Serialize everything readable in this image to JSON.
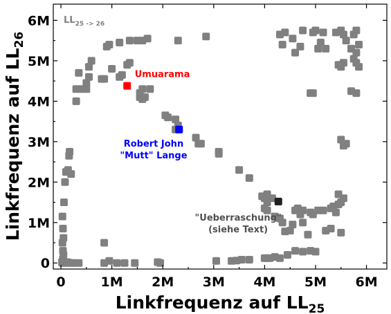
{
  "chart_data": {
    "type": "scatter",
    "xlabel": "Linkfrequenz auf LL",
    "xlabel_sub": "25",
    "ylabel": "Linkfrequenz auf LL",
    "ylabel_sub": "26",
    "corner_label": "LL",
    "corner_label_sub": "25 -> 26",
    "xlim": [
      -0.15,
      6.4
    ],
    "ylim": [
      -0.15,
      6.4
    ],
    "x_ticks": [
      0,
      1,
      2,
      3,
      4,
      5,
      6
    ],
    "x_tick_labels": [
      "0",
      "1M",
      "2M",
      "3M",
      "4M",
      "5M",
      "6M"
    ],
    "y_ticks": [
      0,
      1,
      2,
      3,
      4,
      5,
      6
    ],
    "y_tick_labels": [
      "0",
      "1M",
      "2M",
      "3M",
      "4M",
      "5M",
      "6M"
    ],
    "colors": {
      "default": "#808080",
      "Umuarama": "#ff0000",
      "Robert John Mutt Lange": "#0000ff",
      "Ueberraschung": "#202020"
    },
    "series": [
      {
        "color": "#808080",
        "points": [
          [
            0.02,
            0.02
          ],
          [
            0.03,
            0.0
          ],
          [
            0.05,
            0.03
          ],
          [
            0.1,
            0.0
          ],
          [
            0.12,
            0.02
          ],
          [
            0.15,
            0.01
          ],
          [
            0.2,
            0.0
          ],
          [
            0.25,
            0.0
          ],
          [
            0.35,
            0.0
          ],
          [
            0.04,
            0.1
          ],
          [
            0.05,
            0.2
          ],
          [
            0.04,
            0.3
          ],
          [
            0.03,
            0.5
          ],
          [
            0.05,
            0.62
          ],
          [
            0.04,
            0.85
          ],
          [
            0.03,
            1.15
          ],
          [
            0.06,
            1.5
          ],
          [
            0.08,
            2.0
          ],
          [
            0.1,
            2.25
          ],
          [
            0.14,
            2.3
          ],
          [
            0.2,
            2.2
          ],
          [
            0.16,
            2.65
          ],
          [
            0.17,
            2.75
          ],
          [
            0.85,
            0.0
          ],
          [
            0.95,
            0.05
          ],
          [
            1.1,
            0.0
          ],
          [
            1.25,
            0.0
          ],
          [
            1.45,
            0.0
          ],
          [
            1.9,
            0.02
          ],
          [
            1.95,
            0.0
          ],
          [
            0.85,
            0.5
          ],
          [
            0.3,
            4.0
          ],
          [
            0.3,
            4.3
          ],
          [
            0.4,
            4.3
          ],
          [
            0.5,
            4.3
          ],
          [
            0.5,
            4.45
          ],
          [
            0.55,
            4.6
          ],
          [
            0.55,
            4.85
          ],
          [
            0.6,
            5.0
          ],
          [
            0.35,
            4.7
          ],
          [
            0.8,
            4.55
          ],
          [
            0.85,
            4.55
          ],
          [
            0.9,
            5.35
          ],
          [
            0.95,
            5.4
          ],
          [
            1.0,
            4.8
          ],
          [
            1.15,
            4.6
          ],
          [
            1.2,
            4.65
          ],
          [
            1.15,
            5.45
          ],
          [
            1.35,
            5.5
          ],
          [
            1.3,
            4.9
          ],
          [
            1.35,
            4.95
          ],
          [
            1.5,
            5.5
          ],
          [
            1.6,
            5.5
          ],
          [
            1.7,
            5.55
          ],
          [
            1.55,
            4.2
          ],
          [
            1.6,
            4.3
          ],
          [
            1.55,
            4.1
          ],
          [
            1.6,
            4.05
          ],
          [
            1.65,
            4.1
          ],
          [
            1.75,
            4.3
          ],
          [
            2.3,
            5.5
          ],
          [
            2.85,
            5.6
          ],
          [
            2.05,
            3.65
          ],
          [
            2.1,
            3.6
          ],
          [
            2.25,
            3.55
          ],
          [
            2.25,
            3.3
          ],
          [
            2.3,
            3.4
          ],
          [
            2.65,
            3.1
          ],
          [
            2.7,
            2.95
          ],
          [
            2.75,
            2.95
          ],
          [
            3.1,
            2.75
          ],
          [
            3.1,
            2.7
          ],
          [
            3.5,
            2.3
          ],
          [
            3.7,
            2.1
          ],
          [
            3.05,
            0.05
          ],
          [
            3.35,
            0.05
          ],
          [
            3.45,
            0.06
          ],
          [
            3.55,
            0.08
          ],
          [
            3.7,
            0.08
          ],
          [
            4.0,
            0.12
          ],
          [
            4.05,
            0.12
          ],
          [
            4.1,
            0.12
          ],
          [
            4.2,
            0.15
          ],
          [
            4.3,
            0.12
          ],
          [
            4.45,
            0.2
          ],
          [
            4.6,
            0.3
          ],
          [
            4.75,
            0.28
          ],
          [
            4.9,
            0.3
          ],
          [
            5.0,
            0.28
          ],
          [
            3.95,
            1.65
          ],
          [
            4.05,
            1.7
          ],
          [
            4.0,
            1.6
          ],
          [
            4.05,
            1.5
          ],
          [
            4.15,
            1.6
          ],
          [
            4.05,
            1.3
          ],
          [
            4.0,
            1.35
          ],
          [
            4.2,
            1.15
          ],
          [
            4.3,
            1.1
          ],
          [
            4.35,
            1.0
          ],
          [
            4.4,
            0.78
          ],
          [
            4.5,
            0.8
          ],
          [
            4.6,
            1.3
          ],
          [
            4.65,
            1.35
          ],
          [
            4.75,
            1.3
          ],
          [
            4.7,
            1.2
          ],
          [
            4.75,
            1.0
          ],
          [
            4.95,
            1.2
          ],
          [
            4.9,
            1.25
          ],
          [
            5.05,
            1.3
          ],
          [
            4.85,
            0.7
          ],
          [
            5.15,
            1.3
          ],
          [
            5.3,
            1.35
          ],
          [
            5.35,
            1.4
          ],
          [
            5.45,
            1.7
          ],
          [
            5.5,
            1.5
          ],
          [
            5.45,
            1.45
          ],
          [
            5.55,
            1.6
          ],
          [
            5.4,
            1.25
          ],
          [
            5.2,
            0.8
          ],
          [
            5.3,
            0.85
          ],
          [
            5.5,
            0.75
          ],
          [
            4.55,
            0.95
          ],
          [
            4.3,
            5.65
          ],
          [
            4.35,
            5.4
          ],
          [
            4.4,
            5.7
          ],
          [
            4.6,
            5.2
          ],
          [
            4.7,
            5.35
          ],
          [
            4.55,
            5.55
          ],
          [
            4.75,
            5.75
          ],
          [
            4.95,
            5.7
          ],
          [
            5.0,
            5.75
          ],
          [
            5.05,
            5.3
          ],
          [
            5.1,
            5.45
          ],
          [
            5.2,
            5.3
          ],
          [
            5.15,
            5.7
          ],
          [
            4.9,
            4.2
          ],
          [
            4.95,
            4.2
          ],
          [
            5.4,
            5.7
          ],
          [
            5.5,
            5.75
          ],
          [
            5.55,
            5.65
          ],
          [
            5.6,
            5.5
          ],
          [
            5.7,
            5.3
          ],
          [
            5.75,
            5.65
          ],
          [
            5.8,
            5.75
          ],
          [
            5.85,
            5.4
          ],
          [
            5.75,
            5.05
          ],
          [
            5.7,
            5.3
          ],
          [
            5.8,
            5.2
          ],
          [
            5.45,
            4.9
          ],
          [
            5.5,
            4.85
          ],
          [
            5.55,
            4.95
          ],
          [
            5.8,
            4.95
          ],
          [
            5.85,
            4.85
          ],
          [
            5.7,
            4.25
          ],
          [
            5.8,
            4.2
          ],
          [
            5.5,
            3.05
          ],
          [
            5.55,
            2.9
          ],
          [
            5.6,
            2.95
          ]
        ]
      },
      {
        "name": "Umuarama",
        "color": "#ff0000",
        "points": [
          [
            1.3,
            4.38
          ]
        ]
      },
      {
        "name": "Robert John \"Mutt\" Lange",
        "color": "#0000ff",
        "points": [
          [
            2.32,
            3.3
          ]
        ]
      },
      {
        "name": "\"Ueberraschung\" (siehe Text)",
        "color": "#202020",
        "points": [
          [
            4.27,
            1.52
          ]
        ]
      }
    ],
    "annotations": [
      {
        "lines": [
          "Umuarama"
        ],
        "color": "#ff0000",
        "x": 1.45,
        "y": 4.6
      },
      {
        "lines": [
          "Robert John",
          "\"Mutt\" Lange"
        ],
        "color": "#0000ff",
        "x": 1.82,
        "y": 2.88
      },
      {
        "lines": [
          "\"Ueberraschung\"",
          "(siehe Text)"
        ],
        "color": "#505050",
        "x": 3.48,
        "y": 1.05
      }
    ]
  }
}
